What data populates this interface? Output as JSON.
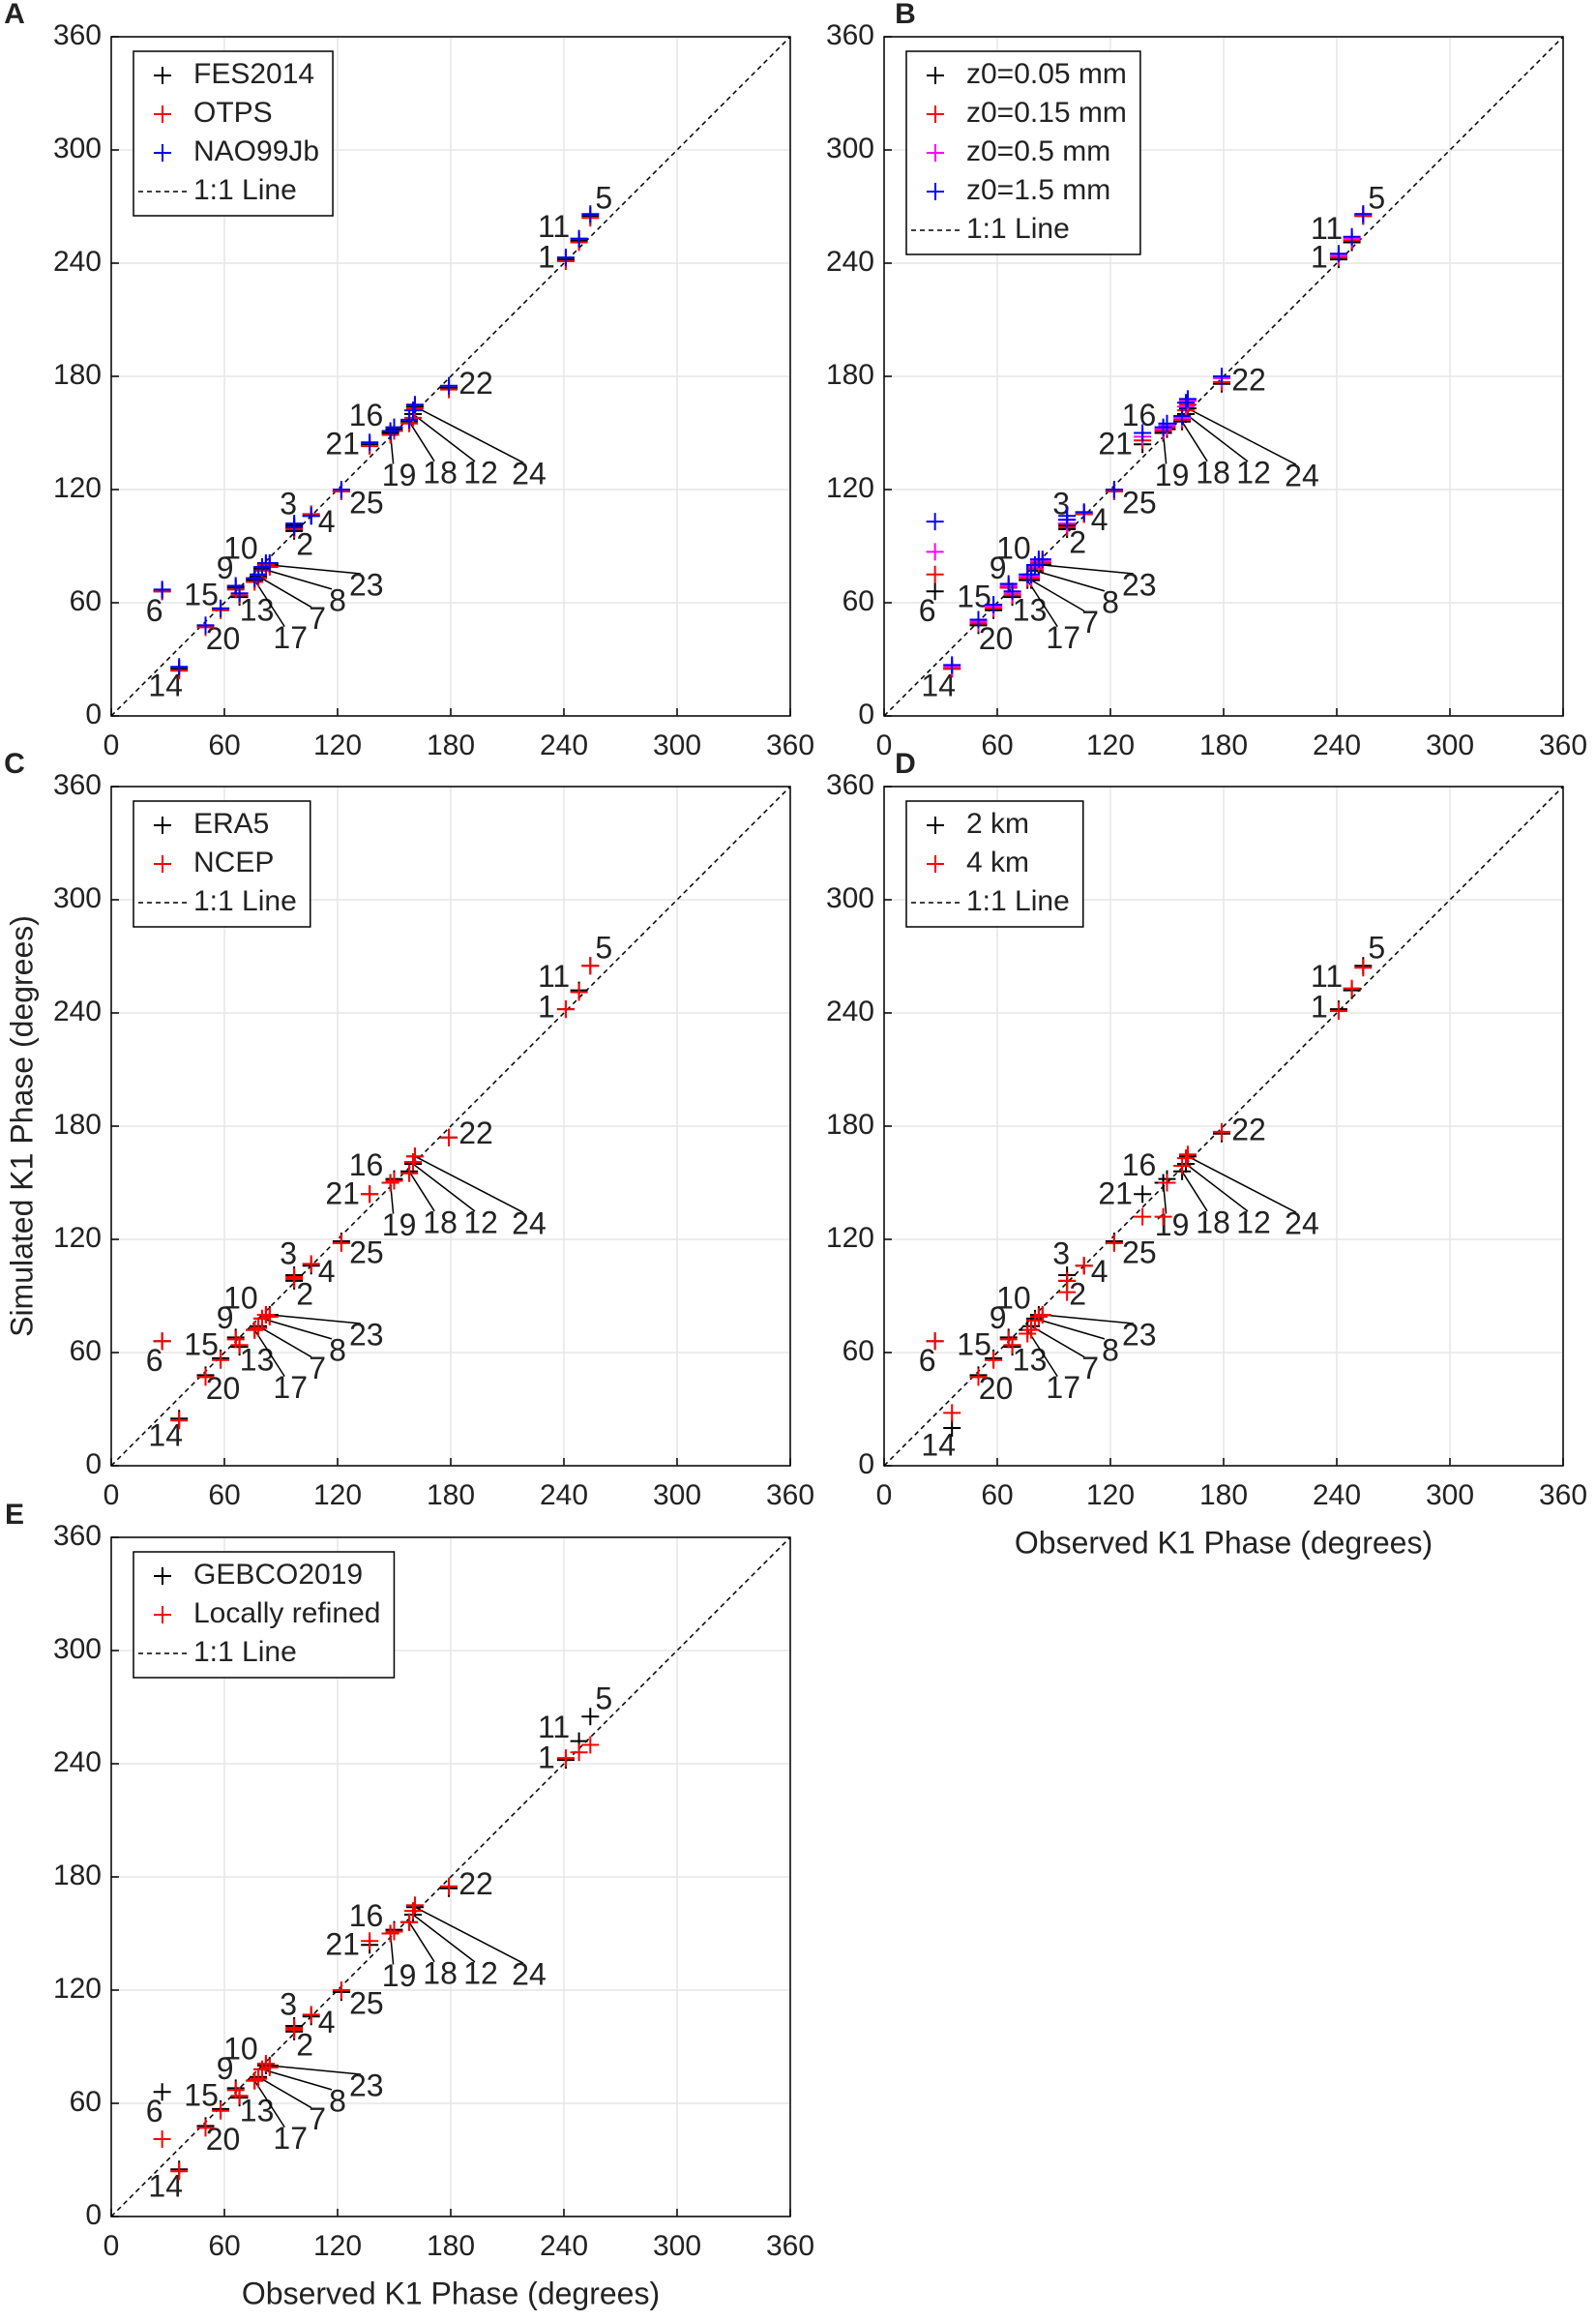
{
  "chart_data": [
    {
      "type": "scatter",
      "panel": "A",
      "x": [
        241,
        97,
        97,
        106,
        254,
        27,
        78,
        80,
        66,
        82,
        248,
        160,
        68,
        36,
        58,
        150,
        76,
        158,
        148,
        50,
        137,
        179,
        84,
        161,
        122
      ],
      "point_labels": [
        "1",
        "2",
        "3",
        "4",
        "5",
        "6",
        "7",
        "8",
        "9",
        "10",
        "11",
        "12",
        "13",
        "14",
        "15",
        "16",
        "17",
        "18",
        "19",
        "20",
        "21",
        "22",
        "23",
        "24",
        "25"
      ],
      "series": [
        {
          "name": "FES2014",
          "color": "#000000",
          "values": [
            242,
            98,
            101,
            106,
            265,
            66,
            74,
            78,
            68,
            80,
            252,
            160,
            63,
            25,
            57,
            152,
            72,
            156,
            150,
            48,
            144,
            174,
            80,
            164,
            119
          ]
        },
        {
          "name": "OTPS",
          "color": "#ff0000",
          "values": [
            241,
            99,
            100,
            107,
            264,
            66,
            73,
            77,
            67,
            80,
            251,
            158,
            64,
            24,
            56,
            151,
            71,
            155,
            149,
            47,
            143,
            173,
            79,
            163,
            119
          ]
        },
        {
          "name": "NAO99Jb",
          "color": "#0000ff",
          "values": [
            243,
            100,
            102,
            106,
            266,
            67,
            75,
            79,
            69,
            81,
            253,
            162,
            65,
            26,
            57,
            153,
            73,
            157,
            151,
            48,
            145,
            175,
            81,
            165,
            120
          ]
        }
      ],
      "reference_line": "1:1 Line",
      "xlim": [
        0,
        360
      ],
      "ylim": [
        0,
        360
      ],
      "xticks": [
        0,
        60,
        120,
        180,
        240,
        300,
        360
      ],
      "yticks": [
        0,
        60,
        120,
        180,
        240,
        300,
        360
      ],
      "grid": true,
      "legend": "upper left"
    },
    {
      "type": "scatter",
      "panel": "B",
      "x": [
        241,
        97,
        97,
        106,
        254,
        27,
        78,
        80,
        66,
        82,
        248,
        160,
        68,
        36,
        58,
        150,
        76,
        158,
        148,
        50,
        137,
        179,
        84,
        161,
        122
      ],
      "point_labels": [
        "1",
        "2",
        "3",
        "4",
        "5",
        "6",
        "7",
        "8",
        "9",
        "10",
        "11",
        "12",
        "13",
        "14",
        "15",
        "16",
        "17",
        "18",
        "19",
        "20",
        "21",
        "22",
        "23",
        "24",
        "25"
      ],
      "series": [
        {
          "name": "z0=0.05 mm",
          "color": "#000000",
          "values": [
            242,
            99,
            101,
            107,
            265,
            66,
            72,
            77,
            68,
            80,
            251,
            160,
            63,
            25,
            56,
            152,
            72,
            156,
            150,
            48,
            144,
            176,
            80,
            163,
            119
          ]
        },
        {
          "name": "z0=0.15 mm",
          "color": "#ff0000",
          "values": [
            243,
            100,
            102,
            107,
            265,
            75,
            73,
            78,
            68,
            81,
            252,
            162,
            64,
            25,
            57,
            153,
            73,
            157,
            151,
            49,
            146,
            177,
            81,
            165,
            119
          ]
        },
        {
          "name": "z0=0.5 mm",
          "color": "#ff00ff",
          "values": [
            244,
            102,
            104,
            108,
            266,
            87,
            74,
            79,
            69,
            82,
            253,
            164,
            65,
            26,
            58,
            154,
            74,
            158,
            152,
            50,
            148,
            179,
            82,
            167,
            120
          ]
        },
        {
          "name": "z0=1.5 mm",
          "color": "#0000ff",
          "values": [
            245,
            104,
            106,
            108,
            266,
            103,
            75,
            80,
            70,
            83,
            254,
            166,
            66,
            27,
            59,
            155,
            75,
            159,
            153,
            51,
            150,
            180,
            83,
            168,
            120
          ]
        }
      ],
      "reference_line": "1:1 Line",
      "xlim": [
        0,
        360
      ],
      "ylim": [
        0,
        360
      ],
      "xticks": [
        0,
        60,
        120,
        180,
        240,
        300,
        360
      ],
      "yticks": [
        0,
        60,
        120,
        180,
        240,
        300,
        360
      ],
      "grid": true,
      "legend": "upper left"
    },
    {
      "type": "scatter",
      "panel": "C",
      "ylabel": "Simulated K1 Phase (degrees)",
      "x": [
        241,
        97,
        97,
        106,
        254,
        27,
        78,
        80,
        66,
        82,
        248,
        160,
        68,
        36,
        58,
        150,
        76,
        158,
        148,
        50,
        137,
        179,
        84,
        161,
        122
      ],
      "point_labels": [
        "1",
        "2",
        "3",
        "4",
        "5",
        "6",
        "7",
        "8",
        "9",
        "10",
        "11",
        "12",
        "13",
        "14",
        "15",
        "16",
        "17",
        "18",
        "19",
        "20",
        "21",
        "22",
        "23",
        "24",
        "25"
      ],
      "series": [
        {
          "name": "ERA5",
          "color": "#000000",
          "values": [
            242,
            98,
            101,
            106,
            265,
            66,
            74,
            78,
            68,
            80,
            252,
            160,
            63,
            25,
            57,
            152,
            72,
            156,
            150,
            48,
            144,
            174,
            80,
            164,
            119
          ]
        },
        {
          "name": "NCEP",
          "color": "#ff0000",
          "values": [
            242,
            99,
            100,
            107,
            265,
            66,
            73,
            78,
            67,
            80,
            251,
            161,
            64,
            24,
            56,
            151,
            72,
            155,
            150,
            47,
            144,
            174,
            79,
            164,
            118
          ]
        }
      ],
      "reference_line": "1:1 Line",
      "xlim": [
        0,
        360
      ],
      "ylim": [
        0,
        360
      ],
      "xticks": [
        0,
        60,
        120,
        180,
        240,
        300,
        360
      ],
      "yticks": [
        0,
        60,
        120,
        180,
        240,
        300,
        360
      ],
      "grid": true,
      "legend": "upper left"
    },
    {
      "type": "scatter",
      "panel": "D",
      "xlabel": "Observed K1 Phase (degrees)",
      "x": [
        241,
        97,
        97,
        106,
        254,
        27,
        78,
        80,
        66,
        82,
        248,
        160,
        68,
        36,
        58,
        150,
        76,
        158,
        148,
        50,
        137,
        179,
        84,
        161,
        122
      ],
      "point_labels": [
        "1",
        "2",
        "3",
        "4",
        "5",
        "6",
        "7",
        "8",
        "9",
        "10",
        "11",
        "12",
        "13",
        "14",
        "15",
        "16",
        "17",
        "18",
        "19",
        "20",
        "21",
        "22",
        "23",
        "24",
        "25"
      ],
      "series": [
        {
          "name": "2 km",
          "color": "#000000",
          "values": [
            242,
            98,
            101,
            106,
            265,
            66,
            74,
            78,
            68,
            80,
            252,
            160,
            63,
            20,
            57,
            152,
            72,
            156,
            150,
            48,
            144,
            176,
            80,
            164,
            119
          ]
        },
        {
          "name": "4 km",
          "color": "#ff0000",
          "values": [
            241,
            92,
            98,
            106,
            264,
            66,
            72,
            77,
            67,
            79,
            253,
            163,
            64,
            28,
            56,
            150,
            70,
            159,
            132,
            47,
            132,
            177,
            80,
            165,
            118
          ]
        }
      ],
      "reference_line": "1:1 Line",
      "xlim": [
        0,
        360
      ],
      "ylim": [
        0,
        360
      ],
      "xticks": [
        0,
        60,
        120,
        180,
        240,
        300,
        360
      ],
      "yticks": [
        0,
        60,
        120,
        180,
        240,
        300,
        360
      ],
      "grid": true,
      "legend": "upper left"
    },
    {
      "type": "scatter",
      "panel": "E",
      "xlabel": "Observed K1 Phase (degrees)",
      "x": [
        241,
        97,
        97,
        106,
        254,
        27,
        78,
        80,
        66,
        82,
        248,
        160,
        68,
        36,
        58,
        150,
        76,
        158,
        148,
        50,
        137,
        179,
        84,
        161,
        122
      ],
      "point_labels": [
        "1",
        "2",
        "3",
        "4",
        "5",
        "6",
        "7",
        "8",
        "9",
        "10",
        "11",
        "12",
        "13",
        "14",
        "15",
        "16",
        "17",
        "18",
        "19",
        "20",
        "21",
        "22",
        "23",
        "24",
        "25"
      ],
      "series": [
        {
          "name": "GEBCO2019",
          "color": "#000000",
          "values": [
            242,
            98,
            101,
            106,
            265,
            66,
            74,
            78,
            68,
            80,
            252,
            160,
            63,
            25,
            57,
            152,
            72,
            156,
            150,
            48,
            144,
            174,
            80,
            164,
            119
          ]
        },
        {
          "name": "Locally refined",
          "color": "#ff0000",
          "values": [
            243,
            99,
            100,
            107,
            250,
            41,
            73,
            78,
            67,
            81,
            246,
            162,
            64,
            24,
            56,
            151,
            72,
            156,
            150,
            47,
            146,
            175,
            79,
            165,
            120
          ]
        }
      ],
      "reference_line": "1:1 Line",
      "xlim": [
        0,
        360
      ],
      "ylim": [
        0,
        360
      ],
      "xticks": [
        0,
        60,
        120,
        180,
        240,
        300,
        360
      ],
      "yticks": [
        0,
        60,
        120,
        180,
        240,
        300,
        360
      ],
      "grid": true,
      "legend": "upper left"
    }
  ]
}
